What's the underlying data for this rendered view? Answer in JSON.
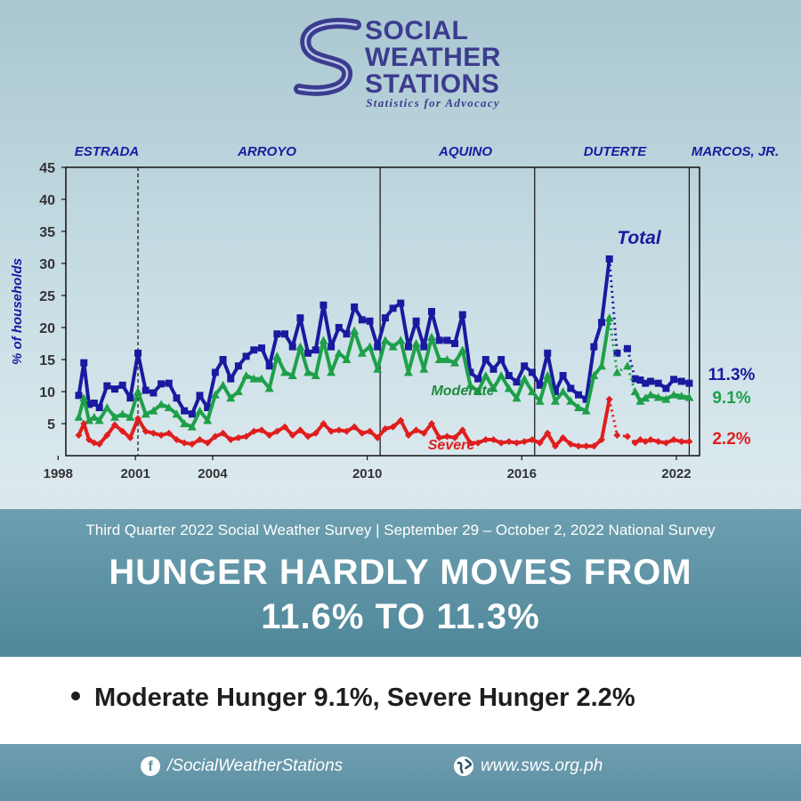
{
  "brand": {
    "name_lines": [
      "SOCIAL",
      "WEATHER",
      "STATIONS"
    ],
    "tagline": "Statistics for Advocacy",
    "color": "#3c3c8e"
  },
  "chart_data": {
    "type": "line",
    "ylabel": "% of households",
    "ylim": [
      0,
      45
    ],
    "yticks": [
      5,
      10,
      15,
      20,
      25,
      30,
      35,
      40,
      45
    ],
    "xlim": [
      1998.3,
      2022.9
    ],
    "xticks": [
      "1998",
      "2001",
      "2004",
      "2010",
      "2016",
      "2022"
    ],
    "grid": false,
    "administrations": [
      {
        "name": "ESTRADA",
        "start": 1998.5
      },
      {
        "name": "ARROYO",
        "start": 2001.1
      },
      {
        "name": "AQUINO",
        "start": 2010.5
      },
      {
        "name": "DUTERTE",
        "start": 2016.5
      },
      {
        "name": "MARCOS, JR.",
        "start": 2022.5
      }
    ],
    "annotations": [
      "Total",
      "Moderate",
      "Severe"
    ],
    "series": [
      {
        "name": "Total",
        "color": "#1a1aa0",
        "end_label": "11.3%",
        "x": [
          1998.8,
          1999.0,
          1999.2,
          1999.4,
          1999.6,
          1999.9,
          2000.2,
          2000.5,
          2000.8,
          2001.1,
          2001.4,
          2001.7,
          2002.0,
          2002.3,
          2002.6,
          2002.9,
          2003.2,
          2003.5,
          2003.8,
          2004.1,
          2004.4,
          2004.7,
          2005.0,
          2005.3,
          2005.6,
          2005.9,
          2006.2,
          2006.5,
          2006.8,
          2007.1,
          2007.4,
          2007.7,
          2008.0,
          2008.3,
          2008.6,
          2008.9,
          2009.2,
          2009.5,
          2009.8,
          2010.1,
          2010.4,
          2010.7,
          2011.0,
          2011.3,
          2011.6,
          2011.9,
          2012.2,
          2012.5,
          2012.8,
          2013.1,
          2013.4,
          2013.7,
          2014.0,
          2014.3,
          2014.6,
          2014.9,
          2015.2,
          2015.5,
          2015.8,
          2016.1,
          2016.4,
          2016.7,
          2017.0,
          2017.3,
          2017.6,
          2017.9,
          2018.2,
          2018.5,
          2018.8,
          2019.1,
          2019.4,
          2019.7,
          2020.1,
          2020.4,
          2020.6,
          2020.8,
          2021.0,
          2021.3,
          2021.6,
          2021.9,
          2022.2,
          2022.5
        ],
        "y": [
          9.4,
          14.5,
          8.0,
          8.2,
          7.5,
          10.9,
          10.4,
          11.0,
          9.0,
          16.0,
          10.2,
          9.8,
          11.2,
          11.3,
          9.0,
          7.0,
          6.5,
          9.4,
          7.5,
          13.0,
          15.0,
          12.0,
          14.0,
          15.5,
          16.5,
          16.8,
          14.0,
          19.0,
          19.0,
          17.0,
          21.5,
          16.0,
          16.5,
          23.5,
          17.0,
          20.0,
          19.0,
          23.2,
          21.2,
          21.0,
          17.0,
          21.5,
          23.0,
          23.8,
          17.0,
          21.0,
          17.0,
          22.5,
          18.0,
          18.0,
          17.5,
          22.0,
          13.0,
          12.0,
          15.0,
          13.5,
          15.0,
          12.5,
          11.5,
          14.0,
          13.0,
          11.0,
          16.0,
          10.0,
          12.5,
          10.5,
          9.5,
          8.8,
          17.0,
          20.8,
          30.7,
          16.0,
          16.7,
          12.0,
          11.8,
          11.3,
          11.6,
          11.3,
          10.5,
          11.9,
          11.6,
          11.3
        ]
      },
      {
        "name": "Moderate",
        "color": "#1ea04a",
        "end_label": "9.1%",
        "x": [
          1998.8,
          1999.0,
          1999.2,
          1999.4,
          1999.6,
          1999.9,
          2000.2,
          2000.5,
          2000.8,
          2001.1,
          2001.4,
          2001.7,
          2002.0,
          2002.3,
          2002.6,
          2002.9,
          2003.2,
          2003.5,
          2003.8,
          2004.1,
          2004.4,
          2004.7,
          2005.0,
          2005.3,
          2005.6,
          2005.9,
          2006.2,
          2006.5,
          2006.8,
          2007.1,
          2007.4,
          2007.7,
          2008.0,
          2008.3,
          2008.6,
          2008.9,
          2009.2,
          2009.5,
          2009.8,
          2010.1,
          2010.4,
          2010.7,
          2011.0,
          2011.3,
          2011.6,
          2011.9,
          2012.2,
          2012.5,
          2012.8,
          2013.1,
          2013.4,
          2013.7,
          2014.0,
          2014.3,
          2014.6,
          2014.9,
          2015.2,
          2015.5,
          2015.8,
          2016.1,
          2016.4,
          2016.7,
          2017.0,
          2017.3,
          2017.6,
          2017.9,
          2018.2,
          2018.5,
          2018.8,
          2019.1,
          2019.4,
          2019.7,
          2020.1,
          2020.4,
          2020.6,
          2020.8,
          2021.0,
          2021.3,
          2021.6,
          2021.9,
          2022.2,
          2022.5
        ],
        "y": [
          6.0,
          9.0,
          5.5,
          6.0,
          5.5,
          7.5,
          6.0,
          6.5,
          6.0,
          10.0,
          6.5,
          7.0,
          8.0,
          7.5,
          6.5,
          5.0,
          4.5,
          7.0,
          5.5,
          9.5,
          11.0,
          9.0,
          10.0,
          12.5,
          12.0,
          12.0,
          10.5,
          15.5,
          13.0,
          12.5,
          17.0,
          13.0,
          12.5,
          18.0,
          13.0,
          16.0,
          15.0,
          19.5,
          16.0,
          17.0,
          13.5,
          18.0,
          17.0,
          18.0,
          13.0,
          17.5,
          13.5,
          18.5,
          15.0,
          15.0,
          14.5,
          16.5,
          11.0,
          10.0,
          12.5,
          10.5,
          12.5,
          10.5,
          9.0,
          12.0,
          10.0,
          8.5,
          12.5,
          8.5,
          10.0,
          8.5,
          7.5,
          7.0,
          12.5,
          14.0,
          21.5,
          13.0,
          14.0,
          10.0,
          8.5,
          9.0,
          9.5,
          9.1,
          8.8,
          9.5,
          9.3,
          9.1
        ]
      },
      {
        "name": "Severe",
        "color": "#e01e1e",
        "end_label": "2.2%",
        "x": [
          1998.8,
          1999.0,
          1999.2,
          1999.4,
          1999.6,
          1999.9,
          2000.2,
          2000.5,
          2000.8,
          2001.1,
          2001.4,
          2001.7,
          2002.0,
          2002.3,
          2002.6,
          2002.9,
          2003.2,
          2003.5,
          2003.8,
          2004.1,
          2004.4,
          2004.7,
          2005.0,
          2005.3,
          2005.6,
          2005.9,
          2006.2,
          2006.5,
          2006.8,
          2007.1,
          2007.4,
          2007.7,
          2008.0,
          2008.3,
          2008.6,
          2008.9,
          2009.2,
          2009.5,
          2009.8,
          2010.1,
          2010.4,
          2010.7,
          2011.0,
          2011.3,
          2011.6,
          2011.9,
          2012.2,
          2012.5,
          2012.8,
          2013.1,
          2013.4,
          2013.7,
          2014.0,
          2014.3,
          2014.6,
          2014.9,
          2015.2,
          2015.5,
          2015.8,
          2016.1,
          2016.4,
          2016.7,
          2017.0,
          2017.3,
          2017.6,
          2017.9,
          2018.2,
          2018.5,
          2018.8,
          2019.1,
          2019.4,
          2019.7,
          2020.1,
          2020.4,
          2020.6,
          2020.8,
          2021.0,
          2021.3,
          2021.6,
          2021.9,
          2022.2,
          2022.5
        ],
        "y": [
          3.2,
          5.0,
          2.5,
          2.0,
          1.8,
          3.2,
          4.8,
          3.8,
          2.8,
          5.8,
          3.8,
          3.5,
          3.2,
          3.5,
          2.5,
          2.0,
          1.8,
          2.5,
          2.0,
          3.0,
          3.5,
          2.5,
          2.8,
          3.0,
          3.8,
          4.0,
          3.2,
          3.8,
          4.5,
          3.2,
          4.0,
          3.0,
          3.5,
          5.0,
          3.8,
          4.0,
          3.8,
          4.5,
          3.5,
          3.8,
          2.8,
          4.2,
          4.5,
          5.5,
          3.2,
          4.0,
          3.5,
          5.0,
          2.8,
          3.0,
          2.8,
          4.0,
          2.0,
          2.0,
          2.5,
          2.5,
          2.0,
          2.2,
          2.0,
          2.2,
          2.5,
          2.0,
          3.5,
          1.5,
          2.8,
          1.8,
          1.5,
          1.5,
          1.5,
          2.5,
          8.8,
          3.2,
          3.0,
          2.0,
          2.5,
          2.2,
          2.5,
          2.2,
          2.0,
          2.5,
          2.2,
          2.2
        ]
      }
    ]
  },
  "survey_line": "Third Quarter 2022 Social Weather Survey | September 29 – October 2, 2022 National Survey",
  "headline_lines": [
    "HUNGER HARDLY MOVES FROM",
    "11.6% TO 11.3%"
  ],
  "bullet": "Moderate Hunger 9.1%, Severe Hunger 2.2%",
  "footer": {
    "facebook_icon": "facebook-icon",
    "facebook": "/SocialWeatherStations",
    "globe_icon": "globe-icon",
    "website": "www.sws.org.ph"
  }
}
